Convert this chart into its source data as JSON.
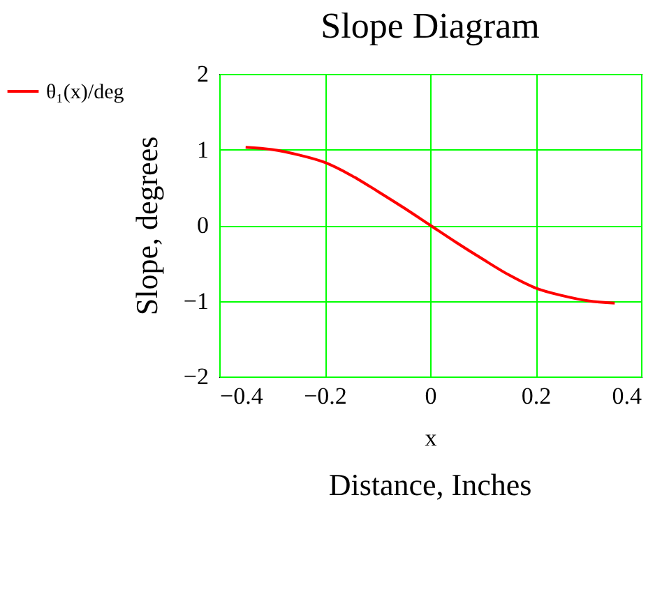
{
  "chart_data": {
    "type": "line",
    "title": "Slope Diagram",
    "xlabel": "x",
    "ylabel": "Slope, degrees",
    "annotations": [
      "Distance, Inches"
    ],
    "x": [
      -0.35,
      -0.3,
      -0.25,
      -0.2,
      -0.15,
      -0.1,
      -0.05,
      0,
      0.05,
      0.1,
      0.15,
      0.2,
      0.25,
      0.3,
      0.35
    ],
    "series": [
      {
        "name": "θ₁(x)/deg",
        "color": "#ff0000",
        "values": [
          1.03,
          1.0,
          0.93,
          0.83,
          0.66,
          0.45,
          0.23,
          0,
          -0.23,
          -0.45,
          -0.66,
          -0.83,
          -0.93,
          -1.0,
          -1.03
        ]
      }
    ],
    "xlim": [
      -0.4,
      0.4
    ],
    "xticks": [
      -0.4,
      -0.2,
      0,
      0.2,
      0.4
    ],
    "ylim": [
      -2,
      2
    ],
    "yticks": [
      -2,
      -1,
      0,
      1,
      2
    ],
    "grid": true,
    "legend": "left",
    "marker": "none",
    "line_style": "solid"
  }
}
